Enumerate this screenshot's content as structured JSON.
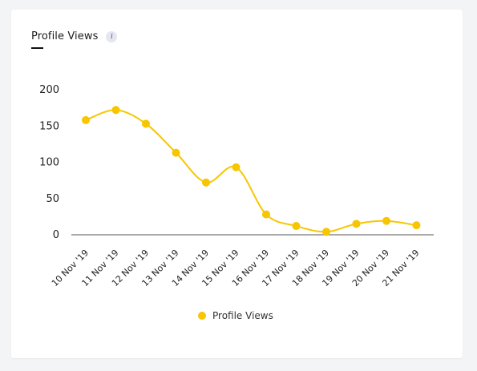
{
  "card": {
    "title": "Profile Views",
    "info_glyph": "i"
  },
  "colors": {
    "series": "#f7c600",
    "axis": "#555555"
  },
  "icons": {
    "info": "info-icon"
  },
  "chart_data": {
    "type": "line",
    "title": "Profile Views",
    "xlabel": "",
    "ylabel": "",
    "ylim": [
      0,
      200
    ],
    "yticks": [
      0,
      50,
      100,
      150,
      200
    ],
    "grid": false,
    "smooth": true,
    "legend_position": "bottom",
    "categories": [
      "10 Nov '19",
      "11 Nov '19",
      "12 Nov '19",
      "13 Nov '19",
      "14 Nov '19",
      "15 Nov '19",
      "16 Nov '19",
      "17 Nov '19",
      "18 Nov '19",
      "19 Nov '19",
      "20 Nov '19",
      "21 Nov '19"
    ],
    "series": [
      {
        "name": "Profile Views",
        "values": [
          157,
          171,
          152,
          112,
          71,
          92,
          27,
          11,
          3,
          14,
          18,
          12
        ]
      }
    ]
  }
}
